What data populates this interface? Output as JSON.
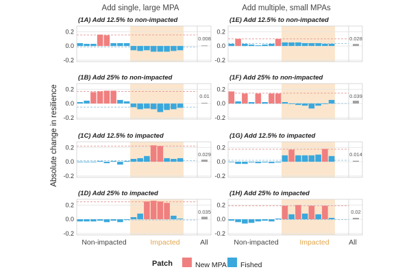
{
  "column_titles": [
    "Add single, large MPA",
    "Add multiple, small MPAs"
  ],
  "y_axis_label": "Absolute change in resilience",
  "x_group_labels": [
    "Non-impacted",
    "Impacted",
    "All"
  ],
  "legend": {
    "title": "Patch",
    "entries": [
      {
        "label": "New MPA",
        "color": "#f07f7f"
      },
      {
        "label": "Fished",
        "color": "#3aa8dc"
      }
    ]
  },
  "colors": {
    "new_mpa": "#f07f7f",
    "fished": "#3aa8dc",
    "all": "#a0a0a0",
    "impacted_band": "#fbe6cd",
    "mpa_dash": "#e8a0a0",
    "fished_dash": "#9cc8e0",
    "grid": "#e4e4e4",
    "axis_text": "#333333",
    "group_impacted": "#e0a64e",
    "group_default": "#444444"
  },
  "chart_data": [
    {
      "id": "1A",
      "title": "(1A) Add 12.5% to non-impacted",
      "type": "bar",
      "y_ticks": [
        "0.2",
        "0.0",
        "-0.2"
      ],
      "ylim": [
        -0.22,
        0.28
      ],
      "values": [
        0.04,
        0.03,
        0.03,
        0.16,
        0.15,
        0.04,
        0.04,
        0.04,
        -0.06,
        -0.07,
        -0.06,
        -0.08,
        -0.08,
        -0.08,
        -0.07,
        -0.06
      ],
      "patch_types": [
        "F",
        "F",
        "F",
        "M",
        "M",
        "F",
        "F",
        "F",
        "F",
        "F",
        "F",
        "F",
        "F",
        "F",
        "F",
        "F"
      ],
      "mean_mpa": 0.155,
      "mean_fished": -0.015,
      "all_value": 0.008,
      "all_label": "0.008"
    },
    {
      "id": "1B",
      "title": "(1B) Add 25% to non-impacted",
      "type": "bar",
      "y_ticks": [
        "0.2",
        "0.0",
        "-0.2"
      ],
      "ylim": [
        -0.22,
        0.28
      ],
      "values": [
        0.02,
        0.04,
        0.16,
        0.17,
        0.18,
        0.18,
        0.05,
        0.03,
        -0.05,
        -0.08,
        -0.07,
        -0.08,
        -0.12,
        -0.09,
        -0.08,
        -0.06
      ],
      "patch_types": [
        "F",
        "F",
        "M",
        "M",
        "M",
        "M",
        "F",
        "F",
        "F",
        "F",
        "F",
        "F",
        "F",
        "F",
        "F",
        "F"
      ],
      "mean_mpa": 0.17,
      "mean_fished": -0.05,
      "all_value": 0.01,
      "all_label": "0.01"
    },
    {
      "id": "1C",
      "title": "(1C) Add 12.5% to impacted",
      "type": "bar",
      "y_ticks": [
        "0.2",
        "0.0",
        "-0.2"
      ],
      "ylim": [
        -0.22,
        0.28
      ],
      "values": [
        0.0,
        0.0,
        0.0,
        0.01,
        -0.02,
        0.01,
        -0.04,
        0.01,
        0.04,
        0.05,
        0.08,
        0.23,
        0.22,
        0.05,
        0.04,
        0.05
      ],
      "patch_types": [
        "F",
        "F",
        "F",
        "F",
        "F",
        "F",
        "F",
        "F",
        "F",
        "F",
        "F",
        "M",
        "M",
        "F",
        "F",
        "F"
      ],
      "mean_mpa": 0.22,
      "mean_fished": 0.015,
      "all_value": 0.029,
      "all_label": "0.029"
    },
    {
      "id": "1D",
      "title": "(1D) Add 25% to impacted",
      "type": "bar",
      "y_ticks": [
        "0.2",
        "0.0",
        "-0.2"
      ],
      "ylim": [
        -0.22,
        0.28
      ],
      "values": [
        -0.03,
        -0.03,
        -0.03,
        -0.02,
        -0.04,
        -0.02,
        -0.04,
        -0.01,
        0.03,
        0.08,
        0.25,
        0.26,
        0.25,
        0.23,
        0.05,
        0.01
      ],
      "patch_types": [
        "F",
        "F",
        "F",
        "F",
        "F",
        "F",
        "F",
        "F",
        "F",
        "F",
        "M",
        "M",
        "M",
        "M",
        "F",
        "F"
      ],
      "mean_mpa": 0.245,
      "mean_fished": -0.01,
      "all_value": 0.035,
      "all_label": "0.035"
    },
    {
      "id": "1E",
      "title": "(1E) Add 12.5% to non-impacted",
      "type": "bar",
      "y_ticks": [
        "0.2",
        "0.0",
        "-0.2"
      ],
      "ylim": [
        -0.22,
        0.28
      ],
      "values": [
        0.03,
        0.1,
        0.03,
        0.02,
        0.01,
        0.02,
        0.03,
        0.1,
        0.05,
        0.05,
        0.05,
        0.04,
        0.04,
        0.04,
        0.03,
        0.03
      ],
      "patch_types": [
        "F",
        "M",
        "F",
        "F",
        "F",
        "F",
        "F",
        "M",
        "F",
        "F",
        "F",
        "F",
        "F",
        "F",
        "F",
        "F"
      ],
      "mean_mpa": 0.1,
      "mean_fished": 0.035,
      "all_value": 0.028,
      "all_label": "0.028"
    },
    {
      "id": "1F",
      "title": "(1F) Add 25% to non-impacted",
      "type": "bar",
      "y_ticks": [
        "0.2",
        "0.0",
        "-0.2"
      ],
      "ylim": [
        -0.22,
        0.28
      ],
      "values": [
        0.17,
        0.03,
        0.14,
        0.02,
        0.14,
        0.02,
        0.14,
        0.14,
        0.02,
        0.0,
        -0.02,
        -0.03,
        -0.07,
        -0.03,
        0.0,
        0.05
      ],
      "patch_types": [
        "M",
        "F",
        "M",
        "F",
        "M",
        "F",
        "M",
        "M",
        "F",
        "F",
        "F",
        "F",
        "F",
        "F",
        "F",
        "F"
      ],
      "mean_mpa": 0.145,
      "mean_fished": 0.0,
      "all_value": 0.039,
      "all_label": "0.039"
    },
    {
      "id": "1G",
      "title": "(1G) Add 12.5% to impacted",
      "type": "bar",
      "y_ticks": [
        "0.2",
        "0.0",
        "-0.2"
      ],
      "ylim": [
        -0.22,
        0.28
      ],
      "values": [
        0.0,
        -0.03,
        -0.03,
        -0.01,
        -0.02,
        -0.01,
        -0.02,
        -0.01,
        0.09,
        0.17,
        0.09,
        0.09,
        0.09,
        0.1,
        0.18,
        0.08
      ],
      "patch_types": [
        "F",
        "F",
        "F",
        "F",
        "F",
        "F",
        "F",
        "F",
        "F",
        "M",
        "F",
        "F",
        "F",
        "F",
        "M",
        "F"
      ],
      "mean_mpa": 0.175,
      "mean_fished": 0.02,
      "all_value": 0.014,
      "all_label": "0.014"
    },
    {
      "id": "1H",
      "title": "(1H) Add 25% to impacted",
      "type": "bar",
      "y_ticks": [
        "0.2",
        "0.0",
        "-0.2"
      ],
      "ylim": [
        -0.22,
        0.28
      ],
      "values": [
        -0.02,
        -0.04,
        -0.06,
        -0.05,
        -0.03,
        -0.02,
        -0.03,
        0.01,
        0.19,
        0.07,
        0.2,
        0.08,
        0.19,
        0.07,
        0.19,
        0.02
      ],
      "patch_types": [
        "F",
        "F",
        "F",
        "F",
        "F",
        "F",
        "F",
        "F",
        "M",
        "F",
        "M",
        "F",
        "M",
        "F",
        "M",
        "F"
      ],
      "mean_mpa": 0.19,
      "mean_fished": -0.005,
      "all_value": 0.02,
      "all_label": "0.02"
    }
  ]
}
